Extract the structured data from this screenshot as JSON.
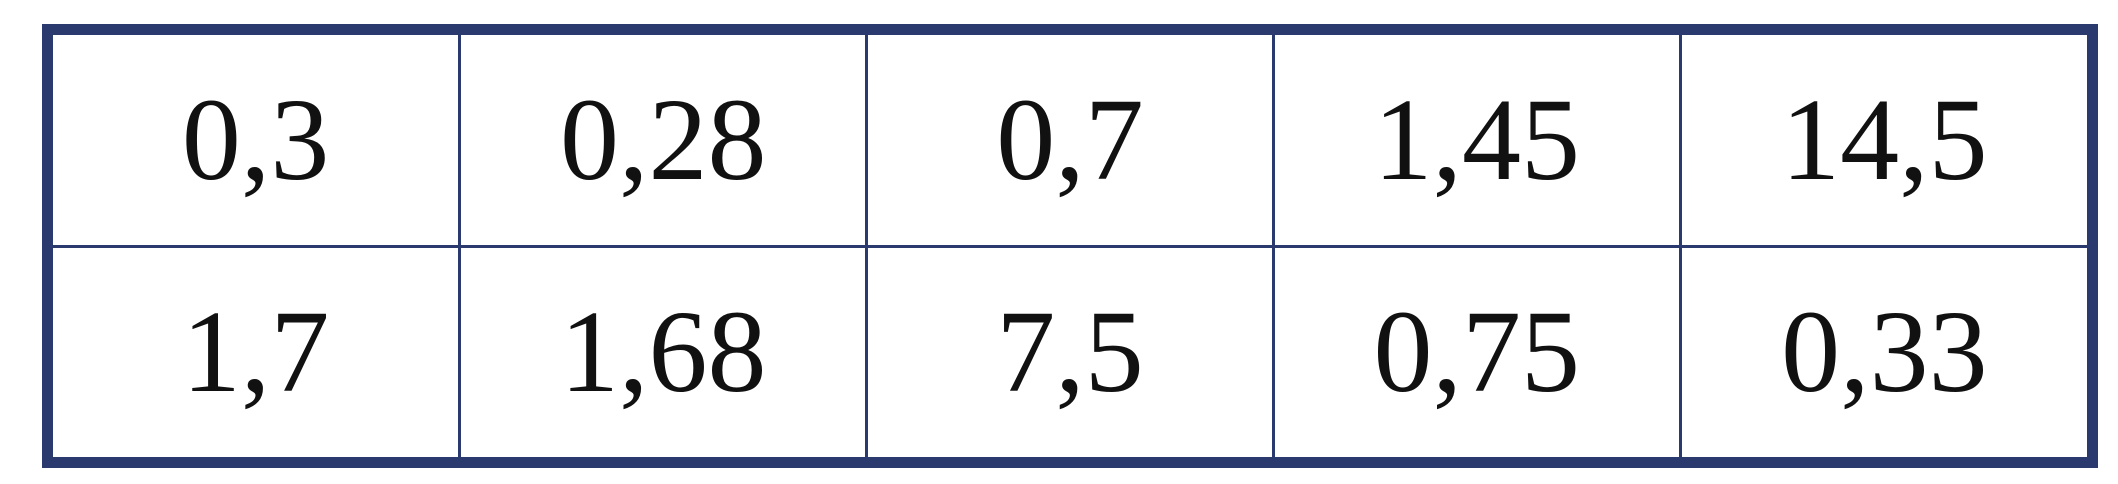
{
  "table": {
    "rows": [
      [
        "0,3",
        "0,28",
        "0,7",
        "1,45",
        "14,5"
      ],
      [
        "1,7",
        "1,68",
        "7,5",
        "0,75",
        "0,33"
      ]
    ]
  }
}
